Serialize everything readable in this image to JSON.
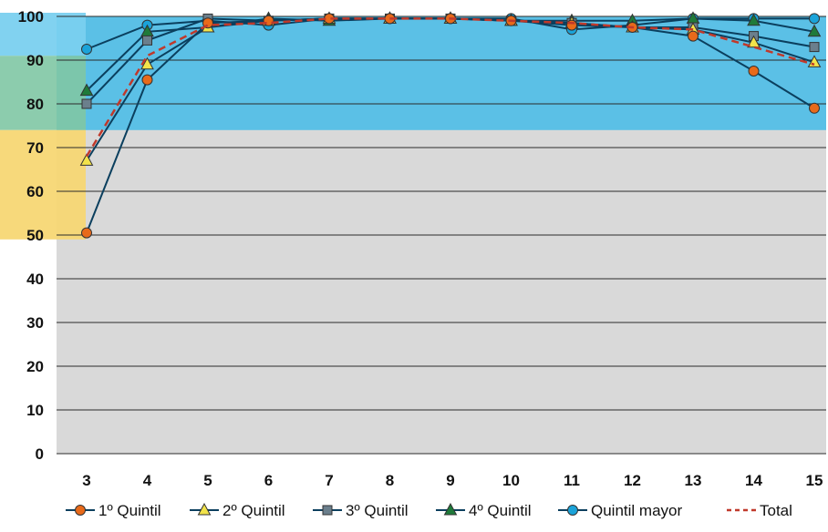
{
  "chart_data": {
    "type": "line",
    "title": "",
    "xlabel": "",
    "ylabel": "",
    "x": [
      3,
      4,
      5,
      6,
      7,
      8,
      9,
      10,
      11,
      12,
      13,
      14,
      15
    ],
    "ylim": [
      0,
      100
    ],
    "yticks": [
      0,
      10,
      20,
      30,
      40,
      50,
      60,
      70,
      80,
      90,
      100
    ],
    "grid": true,
    "legend_position": "bottom",
    "background_colors": {
      "plot": "#d9d9d9",
      "band_upper": "#5bc0e6",
      "band_left_upper": "#7ad0ef",
      "band_left_lower": "#f7d774"
    },
    "series": [
      {
        "name": "1º Quintil",
        "marker": "circle",
        "color": "#0b3f5e",
        "marker_fill": "#e86a1a",
        "values": [
          50.5,
          85.5,
          98.5,
          99.0,
          99.5,
          99.5,
          99.5,
          99.0,
          98.0,
          97.5,
          95.5,
          87.5,
          79.0
        ]
      },
      {
        "name": "2º Quintil",
        "marker": "triangle",
        "color": "#0b3f5e",
        "marker_fill": "#f2e34a",
        "values": [
          67.0,
          89.0,
          97.5,
          99.0,
          99.5,
          99.5,
          99.5,
          99.0,
          98.5,
          97.5,
          97.0,
          94.0,
          89.5
        ]
      },
      {
        "name": "3º Quintil",
        "marker": "square",
        "color": "#0b3f5e",
        "marker_fill": "#6b7f8c",
        "values": [
          80.0,
          94.5,
          99.5,
          99.0,
          99.5,
          99.5,
          99.5,
          99.0,
          98.5,
          97.5,
          97.5,
          95.5,
          93.0
        ]
      },
      {
        "name": "4º Quintil",
        "marker": "triangle",
        "color": "#0b3f5e",
        "marker_fill": "#1f7a3a",
        "values": [
          83.0,
          96.5,
          97.5,
          99.5,
          99.0,
          99.5,
          99.5,
          99.0,
          99.0,
          99.0,
          99.5,
          99.0,
          96.5
        ]
      },
      {
        "name": "Quintil mayor",
        "marker": "circle",
        "color": "#0b3f5e",
        "marker_fill": "#1ba3d9",
        "values": [
          92.5,
          98.0,
          99.0,
          98.0,
          99.5,
          99.5,
          99.5,
          99.5,
          97.0,
          98.0,
          99.5,
          99.5,
          99.5
        ]
      },
      {
        "name": "Total",
        "marker": "none",
        "color": "#c0392b",
        "dashed": true,
        "values": [
          68.0,
          91.0,
          98.0,
          98.5,
          99.5,
          99.5,
          99.5,
          99.0,
          98.5,
          97.5,
          97.0,
          93.0,
          89.0
        ]
      }
    ]
  }
}
